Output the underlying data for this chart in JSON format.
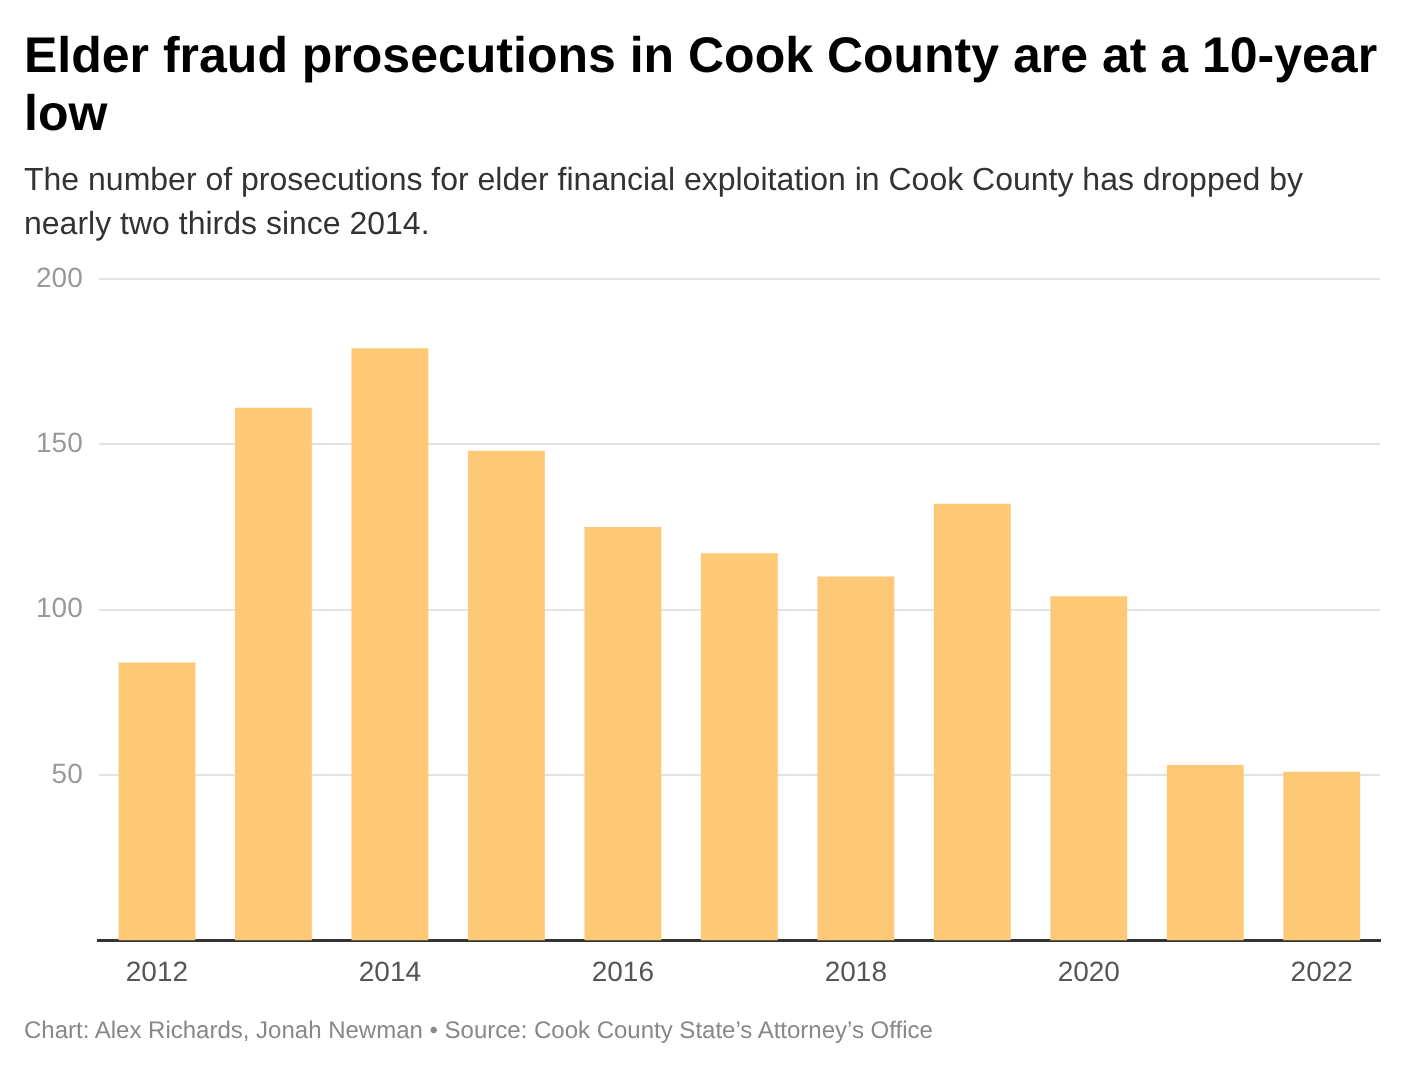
{
  "chart_data": {
    "type": "bar",
    "title": "Elder fraud prosecutions in Cook County are at a 10-year low",
    "subtitle": "The number of prosecutions for elder financial exploitation in Cook County has dropped by nearly two thirds since 2014.",
    "categories": [
      "2012",
      null,
      "2014",
      null,
      "2016",
      null,
      "2018",
      null,
      "2020",
      null,
      "2022"
    ],
    "values": [
      84,
      161,
      179,
      148,
      125,
      117,
      110,
      132,
      104,
      53,
      51
    ],
    "color": "#fdc976",
    "ylim": [
      0,
      200
    ],
    "yticks": [
      50,
      100,
      150,
      200
    ],
    "grid": "y",
    "legend": false,
    "annotations": [
      "Chart: Alex Richards, Jonah Newman • Source: Cook County State’s Attorney’s Office"
    ]
  }
}
